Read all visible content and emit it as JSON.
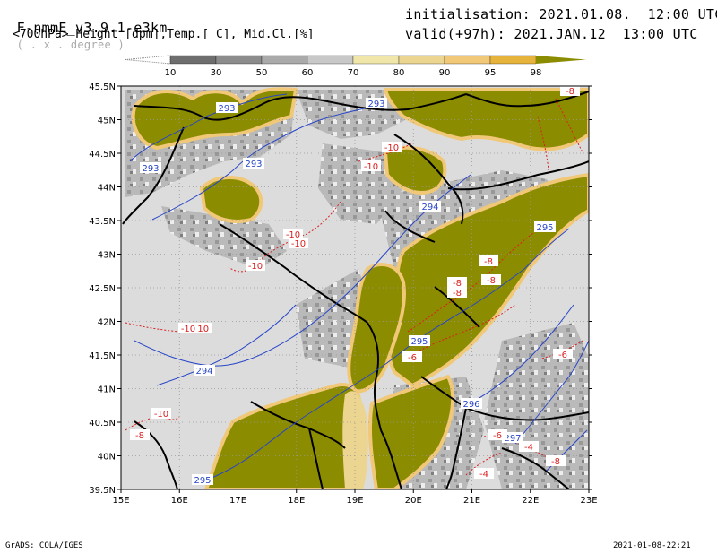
{
  "header": {
    "model_name": "F-nmmE_v3.9.1-e3km",
    "unit_hint": "( . x . degree )",
    "subtitle": "<700hPa> Height [dpm],Temp.[ C], Mid.Cl.[%]",
    "init_label": "initialisation:",
    "init_value": "2021.01.08.  12:00 UTC",
    "valid_label": "valid(+97h):",
    "valid_value": "2021.JAN.12  13:00 UTC"
  },
  "colorbar": {
    "labels": [
      "10",
      "30",
      "50",
      "60",
      "70",
      "80",
      "90",
      "95",
      "98"
    ],
    "colors": [
      "#ffffff",
      "#6e6e6e",
      "#8c8c8c",
      "#aaaaaa",
      "#c8c8c8",
      "#f0e6aa",
      "#ecd591",
      "#f0c878",
      "#e6b43c",
      "#8c8c00"
    ]
  },
  "map": {
    "lat_labels": [
      "45.5N",
      "45N",
      "44.5N",
      "44N",
      "43.5N",
      "43N",
      "42.5N",
      "42N",
      "41.5N",
      "41N",
      "40.5N",
      "40N",
      "39.5N"
    ],
    "lon_labels": [
      "15E",
      "16E",
      "17E",
      "18E",
      "19E",
      "20E",
      "21E",
      "22E",
      "23E"
    ],
    "colors": {
      "background": "#dcdcdc",
      "high_cloud": "#8c8c00",
      "cloud_edge": "#f0c878",
      "cloud_light": "#ecd591",
      "grey_cloud": "#a0a0a0",
      "height_contour": "#2846c8",
      "temp_contour": "#dc1e1e",
      "border": "#000000",
      "grid": "#999999"
    },
    "height_labels": [
      "293",
      "293",
      "293",
      "293",
      "294",
      "294",
      "295",
      "295",
      "296",
      "297",
      "295"
    ],
    "temp_labels": [
      "-10",
      "-10",
      "-10",
      "-10",
      "-10",
      "-10",
      "-10",
      "-10",
      "-8",
      "-8",
      "-8",
      "-8",
      "-8",
      "-6",
      "-6",
      "-6",
      "-4",
      "-4",
      "-8",
      "-8"
    ]
  },
  "footer": {
    "left": "GrADS: COLA/IGES",
    "right": "2021-01-08-22:21"
  }
}
